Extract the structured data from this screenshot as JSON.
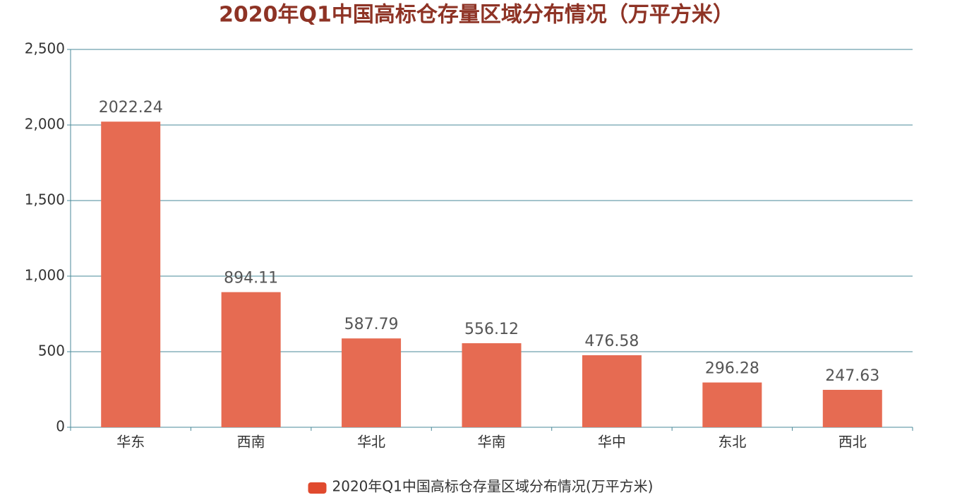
{
  "chart_data": {
    "type": "bar",
    "title": "2020年Q1中国高标仓存量区域分布情况（万平方米）",
    "categories": [
      "华东",
      "西南",
      "华北",
      "华南",
      "华中",
      "东北",
      "西北"
    ],
    "series": [
      {
        "name": "2020年Q1中国高标仓存量区域分布情况(万平方米)",
        "color": "#e66b52",
        "values": [
          2022.24,
          894.11,
          587.79,
          556.12,
          476.58,
          296.28,
          247.63
        ]
      }
    ],
    "ylim": [
      0,
      2500
    ],
    "yticks": [
      0,
      500,
      {
        "value": 1000,
        "label": "1,000"
      },
      {
        "value": 1500,
        "label": "1,500"
      },
      {
        "value": 2000,
        "label": "2,000"
      },
      {
        "value": 2500,
        "label": "2,500"
      }
    ],
    "grid": true,
    "legend": "bottom"
  }
}
